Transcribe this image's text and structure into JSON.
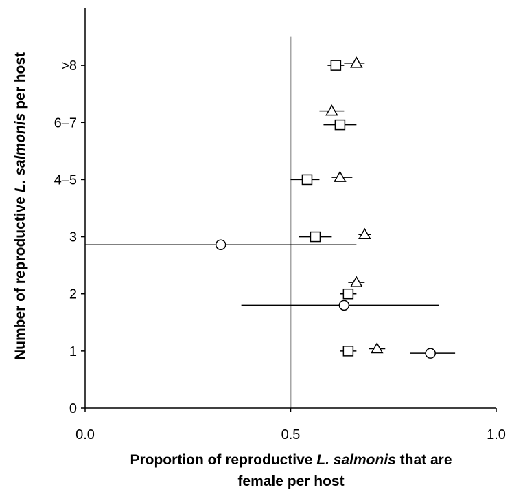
{
  "chart_data": {
    "type": "scatter",
    "xlim": [
      0,
      1
    ],
    "x_ticks": [
      "0.0",
      "0.5",
      "1.0"
    ],
    "ylim": [
      0,
      7
    ],
    "y_ticks": [
      "0",
      "1",
      "2",
      "3",
      "4–5",
      "6–7",
      ">8"
    ],
    "xlabel": {
      "line1_pre": "Proportion of reproductive ",
      "line1_italic": "L. salmonis",
      "line1_post": " that are",
      "line2": "female per host"
    },
    "ylabel": {
      "pre": "Number of reproductive ",
      "italic": "L. salmonis",
      "post": " per host"
    },
    "reference_line_x": 0.5,
    "colors": {
      "reference_line": "#a6a6a6",
      "markers": "#000000",
      "error_bars": "#000000"
    },
    "series": [
      {
        "marker": "triangle",
        "points": [
          {
            "category": "1",
            "x": 0.71,
            "y": 1.04,
            "xerr_low": 0.69,
            "xerr_high": 0.73
          },
          {
            "category": "2",
            "x": 0.66,
            "y": 2.2,
            "xerr_low": 0.64,
            "xerr_high": 0.68
          },
          {
            "category": "3",
            "x": 0.68,
            "y": 3.04,
            "xerr_low": 0.665,
            "xerr_high": 0.695
          },
          {
            "category": "4–5",
            "x": 0.62,
            "y": 4.04,
            "xerr_low": 0.6,
            "xerr_high": 0.65
          },
          {
            "category": "6–7",
            "x": 0.6,
            "y": 5.2,
            "xerr_low": 0.57,
            "xerr_high": 0.63
          },
          {
            "category": ">8",
            "x": 0.66,
            "y": 6.04,
            "xerr_low": 0.63,
            "xerr_high": 0.68
          }
        ]
      },
      {
        "marker": "square",
        "points": [
          {
            "category": "1",
            "x": 0.64,
            "y": 1.0,
            "xerr_low": 0.62,
            "xerr_high": 0.66
          },
          {
            "category": "2",
            "x": 0.64,
            "y": 2.0,
            "xerr_low": 0.62,
            "xerr_high": 0.66
          },
          {
            "category": "3",
            "x": 0.56,
            "y": 3.0,
            "xerr_low": 0.52,
            "xerr_high": 0.6
          },
          {
            "category": "4–5",
            "x": 0.54,
            "y": 4.0,
            "xerr_low": 0.5,
            "xerr_high": 0.57
          },
          {
            "category": "6–7",
            "x": 0.62,
            "y": 4.96,
            "xerr_low": 0.58,
            "xerr_high": 0.66
          },
          {
            "category": ">8",
            "x": 0.61,
            "y": 6.0,
            "xerr_low": 0.59,
            "xerr_high": 0.63
          }
        ]
      },
      {
        "marker": "circle",
        "points": [
          {
            "category": "1",
            "x": 0.84,
            "y": 0.96,
            "xerr_low": 0.79,
            "xerr_high": 0.9
          },
          {
            "category": "2",
            "x": 0.63,
            "y": 1.8,
            "xerr_low": 0.38,
            "xerr_high": 0.86
          },
          {
            "category": "3",
            "x": 0.33,
            "y": 2.86,
            "xerr_low": 0.0,
            "xerr_high": 0.66
          }
        ]
      }
    ]
  }
}
